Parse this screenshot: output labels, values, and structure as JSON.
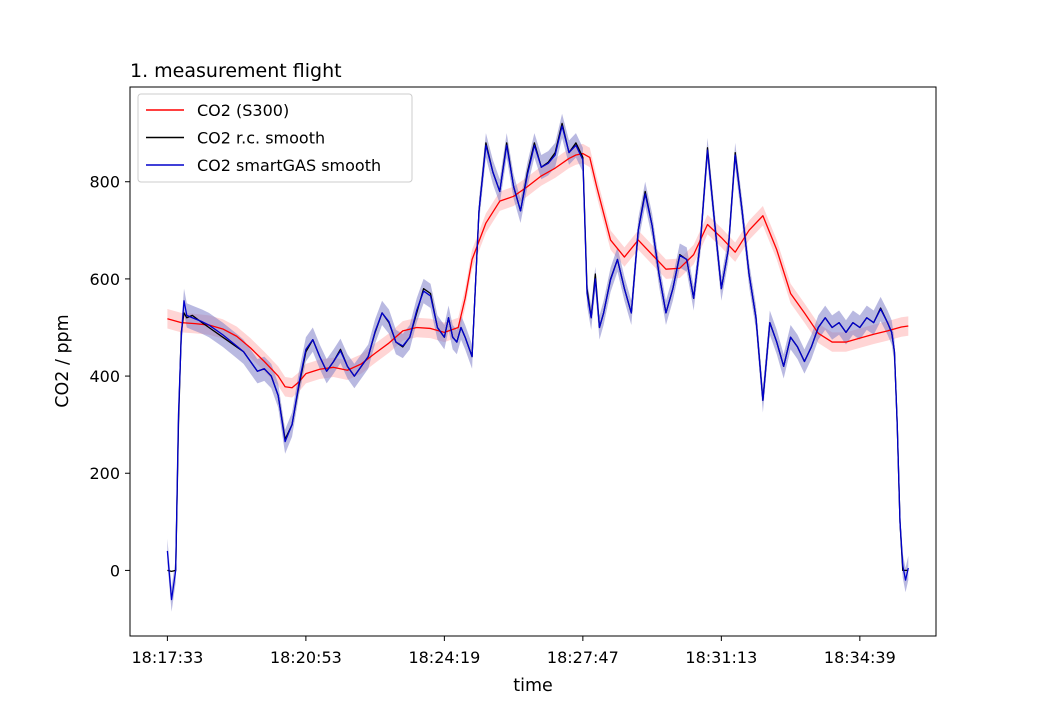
{
  "chart_data": {
    "type": "line",
    "title": "1. measurement flight",
    "xlabel": "time",
    "ylabel": "CO2 / ppm",
    "xlim": [
      -0.27,
      5.55
    ],
    "ylim": [
      -135,
      995
    ],
    "x_ticks": [
      {
        "pos": 0,
        "label": "18:17:33"
      },
      {
        "pos": 1,
        "label": "18:20:53"
      },
      {
        "pos": 2,
        "label": "18:24:19"
      },
      {
        "pos": 3,
        "label": "18:27:47"
      },
      {
        "pos": 4,
        "label": "18:31:13"
      },
      {
        "pos": 5,
        "label": "18:34:39"
      }
    ],
    "y_ticks": [
      0,
      200,
      400,
      600,
      800
    ],
    "legend_position": "upper-left",
    "grid": false,
    "colors": {
      "s300": "#ff0000",
      "s300_band": "#ffb3b3",
      "rc": "#000000",
      "smartgas": "#0000cc",
      "smartgas_band": "#8080c8"
    },
    "series": [
      {
        "name": "CO2 (S300)",
        "color": "#ff0000",
        "band_halfwidth": 20,
        "x": [
          0,
          0.1,
          0.2,
          0.3,
          0.4,
          0.5,
          0.6,
          0.7,
          0.8,
          0.85,
          0.9,
          0.95,
          1.0,
          1.1,
          1.2,
          1.3,
          1.4,
          1.5,
          1.6,
          1.7,
          1.8,
          1.9,
          2.0,
          2.1,
          2.15,
          2.2,
          2.3,
          2.4,
          2.5,
          2.6,
          2.7,
          2.8,
          2.9,
          2.95,
          3.0,
          3.05,
          3.1,
          3.2,
          3.3,
          3.4,
          3.5,
          3.6,
          3.7,
          3.8,
          3.9,
          4.0,
          4.1,
          4.2,
          4.3,
          4.4,
          4.5,
          4.6,
          4.7,
          4.8,
          4.9,
          5.0,
          5.1,
          5.2,
          5.3,
          5.35
        ],
        "values": [
          518,
          510,
          508,
          505,
          497,
          482,
          458,
          430,
          400,
          378,
          376,
          388,
          405,
          414,
          418,
          412,
          425,
          447,
          468,
          493,
          500,
          498,
          490,
          500,
          560,
          640,
          715,
          760,
          770,
          790,
          812,
          828,
          848,
          855,
          858,
          850,
          790,
          680,
          645,
          680,
          650,
          620,
          622,
          650,
          712,
          685,
          655,
          700,
          730,
          660,
          570,
          530,
          488,
          470,
          470,
          478,
          486,
          493,
          501,
          503
        ]
      },
      {
        "name": "CO2 r.c. smooth",
        "color": "#000000",
        "x": [
          0,
          0.03,
          0.06,
          0.08,
          0.1,
          0.12,
          0.14,
          0.18,
          0.25,
          0.3,
          0.4,
          0.5,
          0.55,
          0.6,
          0.65,
          0.7,
          0.75,
          0.8,
          0.85,
          0.9,
          0.95,
          1.0,
          1.05,
          1.1,
          1.15,
          1.2,
          1.25,
          1.3,
          1.35,
          1.4,
          1.45,
          1.5,
          1.55,
          1.6,
          1.65,
          1.7,
          1.75,
          1.8,
          1.85,
          1.9,
          1.95,
          2.0,
          2.03,
          2.06,
          2.09,
          2.12,
          2.15,
          2.2,
          2.25,
          2.3,
          2.35,
          2.4,
          2.45,
          2.5,
          2.55,
          2.6,
          2.65,
          2.7,
          2.75,
          2.8,
          2.85,
          2.9,
          2.95,
          3.0,
          3.03,
          3.06,
          3.09,
          3.12,
          3.15,
          3.2,
          3.25,
          3.3,
          3.35,
          3.4,
          3.45,
          3.5,
          3.55,
          3.6,
          3.65,
          3.7,
          3.75,
          3.8,
          3.85,
          3.9,
          3.95,
          4.0,
          4.05,
          4.1,
          4.15,
          4.2,
          4.25,
          4.3,
          4.35,
          4.4,
          4.45,
          4.5,
          4.55,
          4.6,
          4.65,
          4.7,
          4.75,
          4.8,
          4.85,
          4.9,
          4.95,
          5.0,
          5.05,
          5.1,
          5.15,
          5.2,
          5.23,
          5.25,
          5.27,
          5.29,
          5.31,
          5.33,
          5.35
        ],
        "values": [
          0,
          -2,
          0,
          300,
          490,
          530,
          520,
          525,
          510,
          500,
          480,
          460,
          450,
          430,
          410,
          415,
          400,
          360,
          270,
          300,
          380,
          450,
          475,
          440,
          410,
          430,
          455,
          420,
          400,
          420,
          440,
          490,
          530,
          510,
          470,
          460,
          480,
          530,
          580,
          570,
          500,
          480,
          520,
          480,
          470,
          500,
          480,
          440,
          740,
          880,
          820,
          780,
          880,
          790,
          740,
          820,
          880,
          830,
          840,
          860,
          920,
          860,
          880,
          850,
          580,
          520,
          610,
          500,
          530,
          600,
          640,
          580,
          530,
          700,
          780,
          710,
          610,
          530,
          580,
          650,
          640,
          560,
          680,
          870,
          720,
          580,
          660,
          860,
          740,
          610,
          520,
          350,
          510,
          470,
          420,
          480,
          460,
          430,
          460,
          500,
          520,
          500,
          510,
          490,
          510,
          500,
          520,
          510,
          540,
          510,
          490,
          450,
          300,
          100,
          0,
          0,
          0
        ]
      },
      {
        "name": "CO2 smartGAS smooth",
        "color": "#0000cc",
        "band_halfwidth": 25,
        "x": [
          0,
          0.03,
          0.06,
          0.08,
          0.1,
          0.12,
          0.14,
          0.18,
          0.25,
          0.3,
          0.4,
          0.5,
          0.55,
          0.6,
          0.65,
          0.7,
          0.75,
          0.8,
          0.85,
          0.9,
          0.95,
          1.0,
          1.05,
          1.1,
          1.15,
          1.2,
          1.25,
          1.3,
          1.35,
          1.4,
          1.45,
          1.5,
          1.55,
          1.6,
          1.65,
          1.7,
          1.75,
          1.8,
          1.85,
          1.9,
          1.95,
          2.0,
          2.03,
          2.06,
          2.09,
          2.12,
          2.15,
          2.2,
          2.25,
          2.3,
          2.35,
          2.4,
          2.45,
          2.5,
          2.55,
          2.6,
          2.65,
          2.7,
          2.75,
          2.8,
          2.85,
          2.9,
          2.95,
          3.0,
          3.03,
          3.06,
          3.09,
          3.12,
          3.15,
          3.2,
          3.25,
          3.3,
          3.35,
          3.4,
          3.45,
          3.5,
          3.55,
          3.6,
          3.65,
          3.7,
          3.75,
          3.8,
          3.85,
          3.9,
          3.95,
          4.0,
          4.05,
          4.1,
          4.15,
          4.2,
          4.25,
          4.3,
          4.35,
          4.4,
          4.45,
          4.5,
          4.55,
          4.6,
          4.65,
          4.7,
          4.75,
          4.8,
          4.85,
          4.9,
          4.95,
          5.0,
          5.05,
          5.1,
          5.15,
          5.2,
          5.23,
          5.25,
          5.27,
          5.29,
          5.31,
          5.33,
          5.35
        ],
        "values": [
          40,
          -60,
          0,
          320,
          480,
          555,
          525,
          520,
          512,
          505,
          485,
          462,
          450,
          430,
          410,
          415,
          400,
          360,
          265,
          300,
          385,
          455,
          475,
          440,
          410,
          430,
          452,
          420,
          400,
          420,
          440,
          492,
          530,
          512,
          470,
          462,
          480,
          535,
          575,
          565,
          500,
          480,
          520,
          480,
          470,
          500,
          480,
          440,
          740,
          875,
          820,
          780,
          875,
          790,
          740,
          815,
          875,
          830,
          838,
          855,
          915,
          860,
          875,
          845,
          570,
          520,
          600,
          500,
          530,
          598,
          640,
          580,
          530,
          700,
          775,
          710,
          610,
          530,
          580,
          648,
          640,
          560,
          680,
          865,
          720,
          580,
          660,
          855,
          740,
          610,
          520,
          350,
          510,
          470,
          420,
          480,
          460,
          430,
          460,
          500,
          520,
          500,
          510,
          490,
          510,
          500,
          520,
          510,
          538,
          510,
          490,
          450,
          300,
          100,
          10,
          -20,
          5
        ]
      }
    ]
  }
}
